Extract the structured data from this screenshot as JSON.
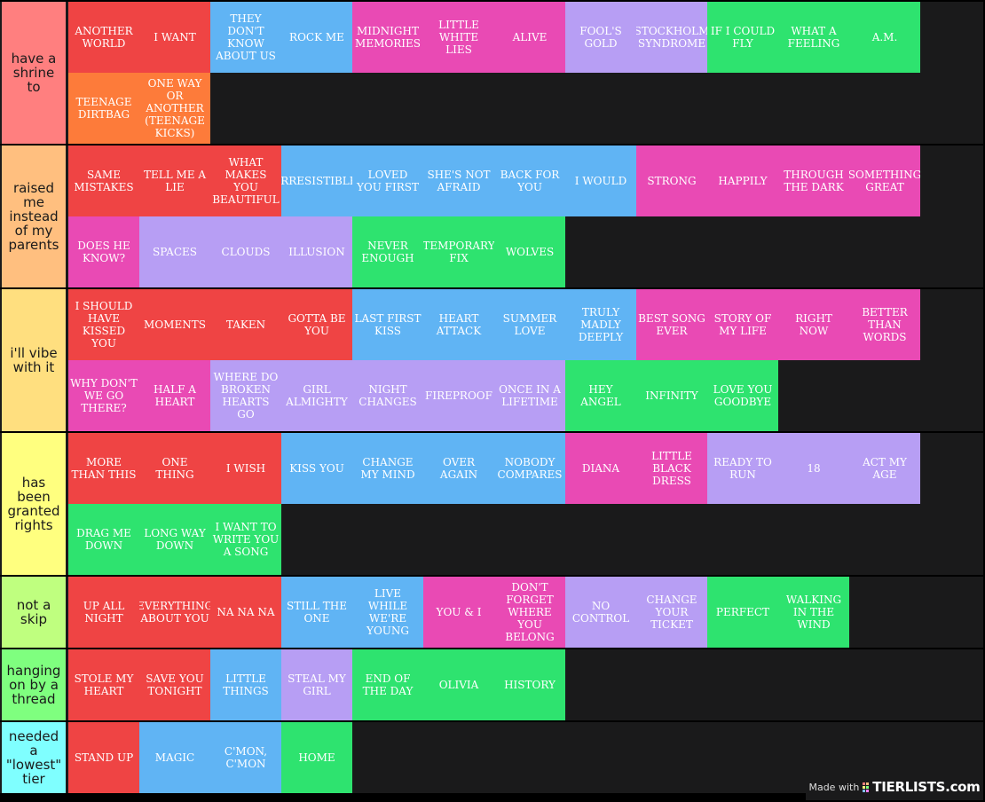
{
  "palette": {
    "red": "#ef4444",
    "blue": "#60b4f4",
    "pink": "#e94ab4",
    "lavender": "#b79ef4",
    "green": "#2ee36f",
    "orange": "#fd7b3a",
    "background": "#1a1a1b"
  },
  "tiers": [
    {
      "label": "have a shrine to",
      "color": "#ff7f7f",
      "items": [
        {
          "text": "ANOTHER WORLD",
          "color": "red"
        },
        {
          "text": "I WANT",
          "color": "red"
        },
        {
          "text": "THEY DON'T KNOW ABOUT US",
          "color": "blue"
        },
        {
          "text": "ROCK ME",
          "color": "blue"
        },
        {
          "text": "MIDNIGHT MEMORIES",
          "color": "pink"
        },
        {
          "text": "LITTLE WHITE LIES",
          "color": "pink"
        },
        {
          "text": "ALIVE",
          "color": "pink"
        },
        {
          "text": "FOOL'S GOLD",
          "color": "lavender"
        },
        {
          "text": "STOCKHOLM SYNDROME",
          "color": "lavender"
        },
        {
          "text": "IF I COULD FLY",
          "color": "green"
        },
        {
          "text": "WHAT A FEELING",
          "color": "green"
        },
        {
          "text": "A.M.",
          "color": "green"
        },
        {
          "text": "TEENAGE DIRTBAG",
          "color": "orange"
        },
        {
          "text": "ONE WAY OR ANOTHER (TEENAGE KICKS)",
          "color": "orange"
        }
      ]
    },
    {
      "label": "raised me instead of my parents",
      "color": "#ffbf7f",
      "items": [
        {
          "text": "SAME MISTAKES",
          "color": "red"
        },
        {
          "text": "TELL ME A LIE",
          "color": "red"
        },
        {
          "text": "WHAT MAKES YOU BEAUTIFUL",
          "color": "red"
        },
        {
          "text": "IRRESISTIBLE",
          "color": "blue"
        },
        {
          "text": "LOVED YOU FIRST",
          "color": "blue"
        },
        {
          "text": "SHE'S NOT AFRAID",
          "color": "blue"
        },
        {
          "text": "BACK FOR YOU",
          "color": "blue"
        },
        {
          "text": "I WOULD",
          "color": "blue"
        },
        {
          "text": "STRONG",
          "color": "pink"
        },
        {
          "text": "HAPPILY",
          "color": "pink"
        },
        {
          "text": "THROUGH THE DARK",
          "color": "pink"
        },
        {
          "text": "SOMETHING GREAT",
          "color": "pink"
        },
        {
          "text": "DOES HE KNOW?",
          "color": "pink"
        },
        {
          "text": "SPACES",
          "color": "lavender"
        },
        {
          "text": "CLOUDS",
          "color": "lavender"
        },
        {
          "text": "ILLUSION",
          "color": "lavender"
        },
        {
          "text": "NEVER ENOUGH",
          "color": "green"
        },
        {
          "text": "TEMPORARY FIX",
          "color": "green"
        },
        {
          "text": "WOLVES",
          "color": "green"
        }
      ]
    },
    {
      "label": "i'll vibe with it",
      "color": "#ffdf7f",
      "items": [
        {
          "text": "I SHOULD HAVE KISSED YOU",
          "color": "red"
        },
        {
          "text": "MOMENTS",
          "color": "red"
        },
        {
          "text": "TAKEN",
          "color": "red"
        },
        {
          "text": "GOTTA BE YOU",
          "color": "red"
        },
        {
          "text": "LAST FIRST KISS",
          "color": "blue"
        },
        {
          "text": "HEART ATTACK",
          "color": "blue"
        },
        {
          "text": "SUMMER LOVE",
          "color": "blue"
        },
        {
          "text": "TRULY MADLY DEEPLY",
          "color": "blue"
        },
        {
          "text": "BEST SONG EVER",
          "color": "pink"
        },
        {
          "text": "STORY OF MY LIFE",
          "color": "pink"
        },
        {
          "text": "RIGHT NOW",
          "color": "pink"
        },
        {
          "text": "BETTER THAN WORDS",
          "color": "pink"
        },
        {
          "text": "WHY DON'T WE GO THERE?",
          "color": "pink"
        },
        {
          "text": "HALF A HEART",
          "color": "pink"
        },
        {
          "text": "WHERE DO BROKEN HEARTS GO",
          "color": "lavender"
        },
        {
          "text": "GIRL ALMIGHTY",
          "color": "lavender"
        },
        {
          "text": "NIGHT CHANGES",
          "color": "lavender"
        },
        {
          "text": "FIREPROOF",
          "color": "lavender"
        },
        {
          "text": "ONCE IN A LIFETIME",
          "color": "lavender"
        },
        {
          "text": "HEY ANGEL",
          "color": "green"
        },
        {
          "text": "INFINITY",
          "color": "green"
        },
        {
          "text": "LOVE YOU GOODBYE",
          "color": "green"
        }
      ]
    },
    {
      "label": "has been granted rights",
      "color": "#ffff7f",
      "items": [
        {
          "text": "MORE THAN THIS",
          "color": "red"
        },
        {
          "text": "ONE THING",
          "color": "red"
        },
        {
          "text": "I WISH",
          "color": "red"
        },
        {
          "text": "KISS YOU",
          "color": "blue"
        },
        {
          "text": "CHANGE MY MIND",
          "color": "blue"
        },
        {
          "text": "OVER AGAIN",
          "color": "blue"
        },
        {
          "text": "NOBODY COMPARES",
          "color": "blue"
        },
        {
          "text": "DIANA",
          "color": "pink"
        },
        {
          "text": "LITTLE BLACK DRESS",
          "color": "pink"
        },
        {
          "text": "READY TO RUN",
          "color": "lavender"
        },
        {
          "text": "18",
          "color": "lavender"
        },
        {
          "text": "ACT MY AGE",
          "color": "lavender"
        },
        {
          "text": "DRAG ME DOWN",
          "color": "green"
        },
        {
          "text": "LONG WAY DOWN",
          "color": "green"
        },
        {
          "text": "I WANT TO WRITE YOU A SONG",
          "color": "green"
        }
      ]
    },
    {
      "label": "not a skip",
      "color": "#bfff7f",
      "items": [
        {
          "text": "UP ALL NIGHT",
          "color": "red"
        },
        {
          "text": "EVERYTHING ABOUT YOU",
          "color": "red"
        },
        {
          "text": "NA NA NA",
          "color": "red"
        },
        {
          "text": "STILL THE ONE",
          "color": "blue"
        },
        {
          "text": "LIVE WHILE WE'RE YOUNG",
          "color": "blue"
        },
        {
          "text": "YOU & I",
          "color": "pink"
        },
        {
          "text": "DON'T FORGET WHERE YOU BELONG",
          "color": "pink"
        },
        {
          "text": "NO CONTROL",
          "color": "lavender"
        },
        {
          "text": "CHANGE YOUR TICKET",
          "color": "lavender"
        },
        {
          "text": "PERFECT",
          "color": "green"
        },
        {
          "text": "WALKING IN THE WIND",
          "color": "green"
        }
      ]
    },
    {
      "label": "hanging on by a thread",
      "color": "#7fff7f",
      "items": [
        {
          "text": "STOLE MY HEART",
          "color": "red"
        },
        {
          "text": "SAVE YOU TONIGHT",
          "color": "red"
        },
        {
          "text": "LITTLE THINGS",
          "color": "blue"
        },
        {
          "text": "STEAL MY GIRL",
          "color": "lavender"
        },
        {
          "text": "END OF THE DAY",
          "color": "green"
        },
        {
          "text": "OLIVIA",
          "color": "green"
        },
        {
          "text": "HISTORY",
          "color": "green"
        }
      ]
    },
    {
      "label": "needed a \"lowest\" tier",
      "color": "#7fffff",
      "items": [
        {
          "text": "STAND UP",
          "color": "red"
        },
        {
          "text": "MAGIC",
          "color": "blue"
        },
        {
          "text": "C'MON, C'MON",
          "color": "blue"
        },
        {
          "text": "HOME",
          "color": "green"
        }
      ]
    }
  ],
  "badge": {
    "made_with": "Made with",
    "brand": "TIERLISTS.com",
    "icon": "tierlists-logo-icon"
  }
}
